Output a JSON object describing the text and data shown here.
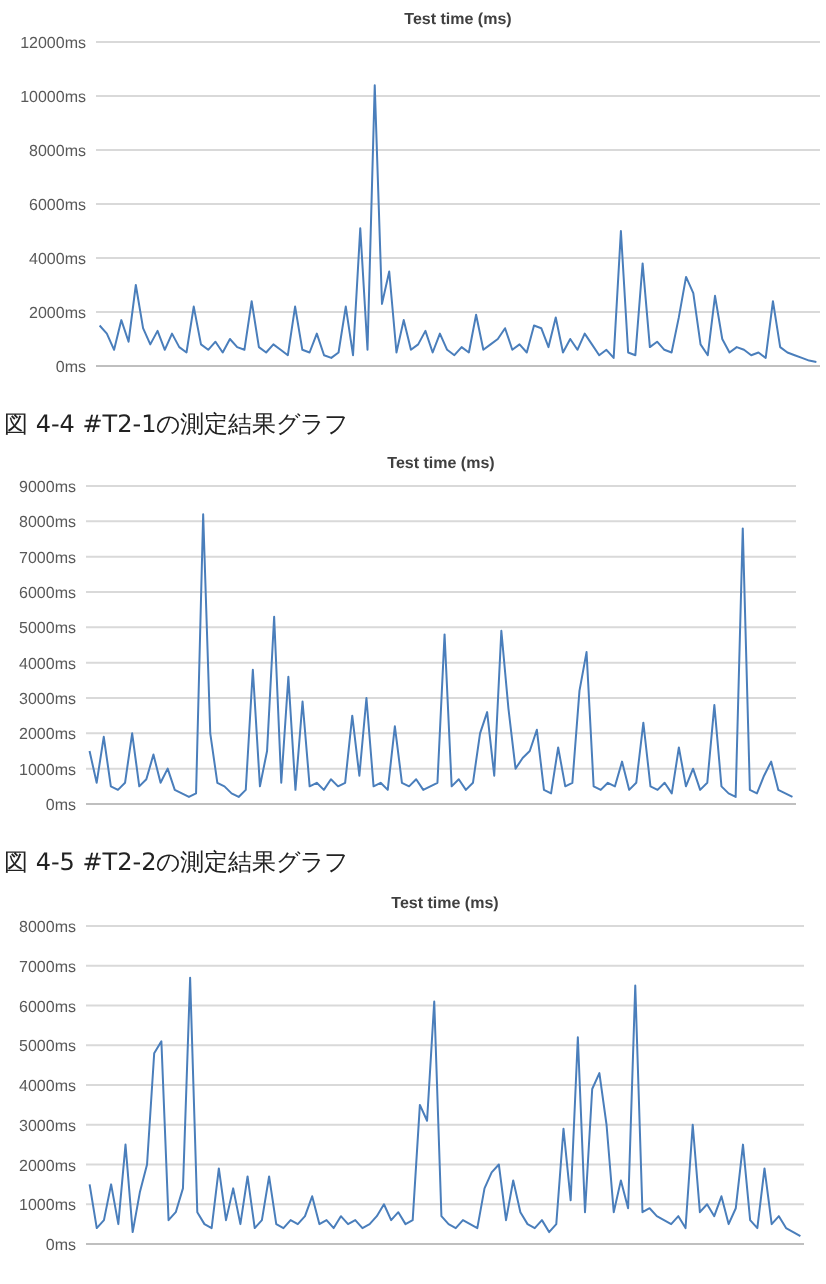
{
  "chart_data": [
    {
      "type": "line",
      "title": "Test time (ms)",
      "annotations": [
        "図 4-4 #T2-1の測定結果グラフ"
      ],
      "grid": "y",
      "ylim": [
        0,
        12000
      ],
      "yticks": [
        {
          "value": 0,
          "label": "0ms"
        },
        {
          "value": 2000,
          "label": "2000ms"
        },
        {
          "value": 4000,
          "label": "4000ms"
        },
        {
          "value": 6000,
          "label": "6000ms"
        },
        {
          "value": 8000,
          "label": "8000ms"
        },
        {
          "value": 10000,
          "label": "10000ms"
        },
        {
          "value": 12000,
          "label": "12000ms"
        }
      ],
      "categories": [
        null,
        null,
        null,
        null,
        null,
        null,
        null,
        null,
        null,
        null,
        null,
        null,
        null,
        null,
        null,
        null,
        null,
        null,
        null,
        null,
        null,
        null,
        null,
        null,
        null,
        null,
        null,
        null,
        null,
        null,
        null,
        null,
        null,
        null,
        null,
        null,
        null,
        null,
        null,
        null,
        null,
        null,
        null,
        null,
        null,
        null,
        null,
        null,
        null,
        null,
        null,
        null,
        null,
        null,
        null,
        null,
        null,
        null,
        null,
        null,
        null,
        null,
        null,
        null,
        null,
        null,
        null,
        null,
        null,
        null,
        null,
        null,
        null,
        null,
        null,
        null,
        null,
        null,
        null,
        null,
        null,
        null,
        null,
        null,
        null,
        null,
        null,
        null,
        null,
        null,
        null,
        null,
        null,
        null,
        null,
        null,
        null,
        null,
        null,
        null
      ],
      "series": [
        {
          "color": "#4a7ebb",
          "values": [
            1500,
            1200,
            600,
            1700,
            900,
            3000,
            1400,
            800,
            1300,
            600,
            1200,
            700,
            500,
            2200,
            800,
            600,
            900,
            500,
            1000,
            700,
            600,
            2400,
            700,
            500,
            800,
            600,
            400,
            2200,
            600,
            500,
            1200,
            400,
            300,
            500,
            2200,
            400,
            5100,
            600,
            10400,
            2300,
            3500,
            500,
            1700,
            600,
            800,
            1300,
            500,
            1200,
            600,
            400,
            700,
            500,
            1900,
            600,
            800,
            1000,
            1400,
            600,
            800,
            500,
            1500,
            1400,
            700,
            1800,
            500,
            1000,
            600,
            1200,
            800,
            400,
            600,
            300,
            5000,
            500,
            400,
            3800,
            700,
            900,
            600,
            500,
            1800,
            3300,
            2700,
            800,
            400,
            2600,
            1000,
            500,
            700,
            600,
            400,
            500,
            300,
            2400,
            700,
            500,
            400,
            300,
            200,
            150
          ]
        }
      ]
    },
    {
      "type": "line",
      "title": "Test time (ms)",
      "annotations": [
        "図 4-5 #T2-2の測定結果グラフ"
      ],
      "grid": "y",
      "ylim": [
        0,
        9000
      ],
      "yticks": [
        {
          "value": 0,
          "label": "0ms"
        },
        {
          "value": 1000,
          "label": "1000ms"
        },
        {
          "value": 2000,
          "label": "2000ms"
        },
        {
          "value": 3000,
          "label": "3000ms"
        },
        {
          "value": 4000,
          "label": "4000ms"
        },
        {
          "value": 5000,
          "label": "5000ms"
        },
        {
          "value": 6000,
          "label": "6000ms"
        },
        {
          "value": 7000,
          "label": "7000ms"
        },
        {
          "value": 8000,
          "label": "8000ms"
        },
        {
          "value": 9000,
          "label": "9000ms"
        }
      ],
      "categories": [
        null,
        null,
        null,
        null,
        null,
        null,
        null,
        null,
        null,
        null,
        null,
        null,
        null,
        null,
        null,
        null,
        null,
        null,
        null,
        null,
        null,
        null,
        null,
        null,
        null,
        null,
        null,
        null,
        null,
        null,
        null,
        null,
        null,
        null,
        null,
        null,
        null,
        null,
        null,
        null,
        null,
        null,
        null,
        null,
        null,
        null,
        null,
        null,
        null,
        null,
        null,
        null,
        null,
        null,
        null,
        null,
        null,
        null,
        null,
        null,
        null,
        null,
        null,
        null,
        null,
        null,
        null,
        null,
        null,
        null,
        null,
        null,
        null,
        null,
        null,
        null,
        null,
        null,
        null,
        null,
        null,
        null,
        null,
        null,
        null,
        null,
        null,
        null,
        null,
        null,
        null,
        null,
        null,
        null,
        null,
        null,
        null,
        null,
        null,
        null
      ],
      "series": [
        {
          "color": "#4a7ebb",
          "values": [
            1500,
            600,
            1900,
            500,
            400,
            600,
            2000,
            500,
            700,
            1400,
            600,
            1000,
            400,
            300,
            200,
            300,
            8200,
            2000,
            600,
            500,
            300,
            200,
            400,
            3800,
            500,
            1500,
            5300,
            600,
            3600,
            400,
            2900,
            500,
            600,
            400,
            700,
            500,
            600,
            2500,
            800,
            3000,
            500,
            600,
            400,
            2200,
            600,
            500,
            700,
            400,
            500,
            600,
            4800,
            500,
            700,
            400,
            600,
            2000,
            2600,
            800,
            4900,
            2700,
            1000,
            1300,
            1500,
            2100,
            400,
            300,
            1600,
            500,
            600,
            3200,
            4300,
            500,
            400,
            600,
            500,
            1200,
            400,
            600,
            2300,
            500,
            400,
            600,
            300,
            1600,
            500,
            1000,
            400,
            600,
            2800,
            500,
            300,
            200,
            7800,
            400,
            300,
            800,
            1200,
            400,
            300,
            200
          ]
        }
      ]
    },
    {
      "type": "line",
      "title": "Test time (ms)",
      "grid": "y",
      "ylim": [
        0,
        8000
      ],
      "yticks": [
        {
          "value": 0,
          "label": "0ms"
        },
        {
          "value": 1000,
          "label": "1000ms"
        },
        {
          "value": 2000,
          "label": "2000ms"
        },
        {
          "value": 3000,
          "label": "3000ms"
        },
        {
          "value": 4000,
          "label": "4000ms"
        },
        {
          "value": 5000,
          "label": "5000ms"
        },
        {
          "value": 6000,
          "label": "6000ms"
        },
        {
          "value": 7000,
          "label": "7000ms"
        },
        {
          "value": 8000,
          "label": "8000ms"
        }
      ],
      "categories": [
        null,
        null,
        null,
        null,
        null,
        null,
        null,
        null,
        null,
        null,
        null,
        null,
        null,
        null,
        null,
        null,
        null,
        null,
        null,
        null,
        null,
        null,
        null,
        null,
        null,
        null,
        null,
        null,
        null,
        null,
        null,
        null,
        null,
        null,
        null,
        null,
        null,
        null,
        null,
        null,
        null,
        null,
        null,
        null,
        null,
        null,
        null,
        null,
        null,
        null,
        null,
        null,
        null,
        null,
        null,
        null,
        null,
        null,
        null,
        null,
        null,
        null,
        null,
        null,
        null,
        null,
        null,
        null,
        null,
        null,
        null,
        null,
        null,
        null,
        null,
        null,
        null,
        null,
        null,
        null,
        null,
        null,
        null,
        null,
        null,
        null,
        null,
        null,
        null,
        null,
        null,
        null,
        null,
        null,
        null,
        null,
        null,
        null,
        null,
        null
      ],
      "series": [
        {
          "color": "#4a7ebb",
          "values": [
            1500,
            400,
            600,
            1500,
            500,
            2500,
            300,
            1300,
            2000,
            4800,
            5100,
            600,
            800,
            1400,
            6700,
            800,
            500,
            400,
            1900,
            600,
            1400,
            500,
            1700,
            400,
            600,
            1700,
            500,
            400,
            600,
            500,
            700,
            1200,
            500,
            600,
            400,
            700,
            500,
            600,
            400,
            500,
            700,
            1000,
            600,
            800,
            500,
            600,
            3500,
            3100,
            6100,
            700,
            500,
            400,
            600,
            500,
            400,
            1400,
            1800,
            2000,
            600,
            1600,
            800,
            500,
            400,
            600,
            300,
            500,
            2900,
            1100,
            5200,
            800,
            3900,
            4300,
            3000,
            800,
            1600,
            900,
            6500,
            800,
            900,
            700,
            600,
            500,
            700,
            400,
            3000,
            800,
            1000,
            700,
            1200,
            500,
            900,
            2500,
            600,
            400,
            1900,
            500,
            700,
            400,
            300,
            200
          ]
        }
      ]
    }
  ]
}
